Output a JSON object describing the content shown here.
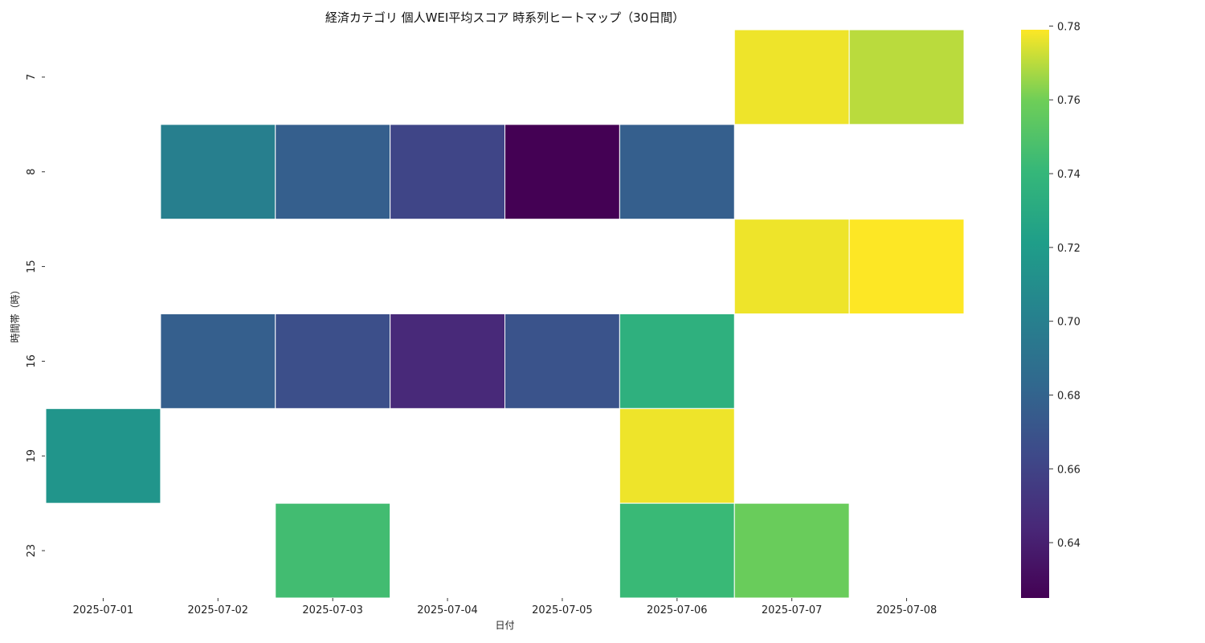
{
  "chart_data": {
    "type": "heatmap",
    "title": "経済カテゴリ 個人WEI平均スコア 時系列ヒートマップ（30日間）",
    "xlabel": "日付",
    "ylabel": "時間帯（時）",
    "x": [
      "2025-07-01",
      "2025-07-02",
      "2025-07-03",
      "2025-07-04",
      "2025-07-05",
      "2025-07-06",
      "2025-07-07",
      "2025-07-08"
    ],
    "y": [
      "7",
      "8",
      "15",
      "16",
      "19",
      "23"
    ],
    "values": [
      [
        null,
        null,
        null,
        null,
        null,
        null,
        0.777,
        0.77
      ],
      [
        null,
        0.7,
        0.677,
        0.661,
        0.625,
        0.677,
        null,
        null
      ],
      [
        null,
        null,
        null,
        null,
        null,
        null,
        0.777,
        0.779
      ],
      [
        null,
        0.677,
        0.667,
        0.645,
        0.67,
        0.735,
        null,
        null
      ],
      [
        0.715,
        null,
        null,
        null,
        null,
        0.777,
        null,
        null
      ],
      [
        null,
        null,
        0.745,
        null,
        null,
        0.742,
        0.758,
        null
      ]
    ],
    "colorbar": {
      "colormap": "viridis",
      "range": [
        0.625,
        0.779
      ],
      "ticks": [
        "0.64",
        "0.66",
        "0.68",
        "0.70",
        "0.72",
        "0.74",
        "0.76",
        "0.78"
      ]
    },
    "grid": false,
    "missing_cells": "blank"
  }
}
